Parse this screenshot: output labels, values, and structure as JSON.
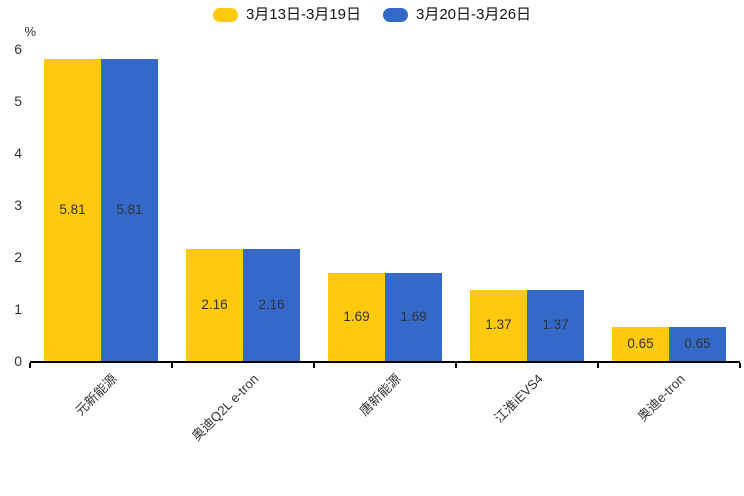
{
  "y_axis": {
    "unit": "%",
    "tick_labels": [
      "0",
      "1",
      "2",
      "3",
      "4",
      "5",
      "6"
    ]
  },
  "chart_data": {
    "type": "bar",
    "title": "",
    "xlabel": "",
    "ylabel": "%",
    "categories": [
      "元新能源",
      "奥迪Q2L e-tron",
      "唐新能源",
      "江淮iEVS4",
      "奥迪e-tron"
    ],
    "series": [
      {
        "name": "3月13日-3月19日",
        "color": "#FFC90D",
        "values": [
          5.81,
          2.16,
          1.69,
          1.37,
          0.65
        ]
      },
      {
        "name": "3月20日-3月26日",
        "color": "#3469C9",
        "values": [
          5.81,
          2.16,
          1.69,
          1.37,
          0.65
        ]
      }
    ],
    "ylim": [
      0,
      6
    ],
    "yticks": [
      0,
      1,
      2,
      3,
      4,
      5,
      6
    ],
    "grid": false,
    "legend_position": "top",
    "value_label_position": "inside-center",
    "value_label_decimals": 2
  }
}
